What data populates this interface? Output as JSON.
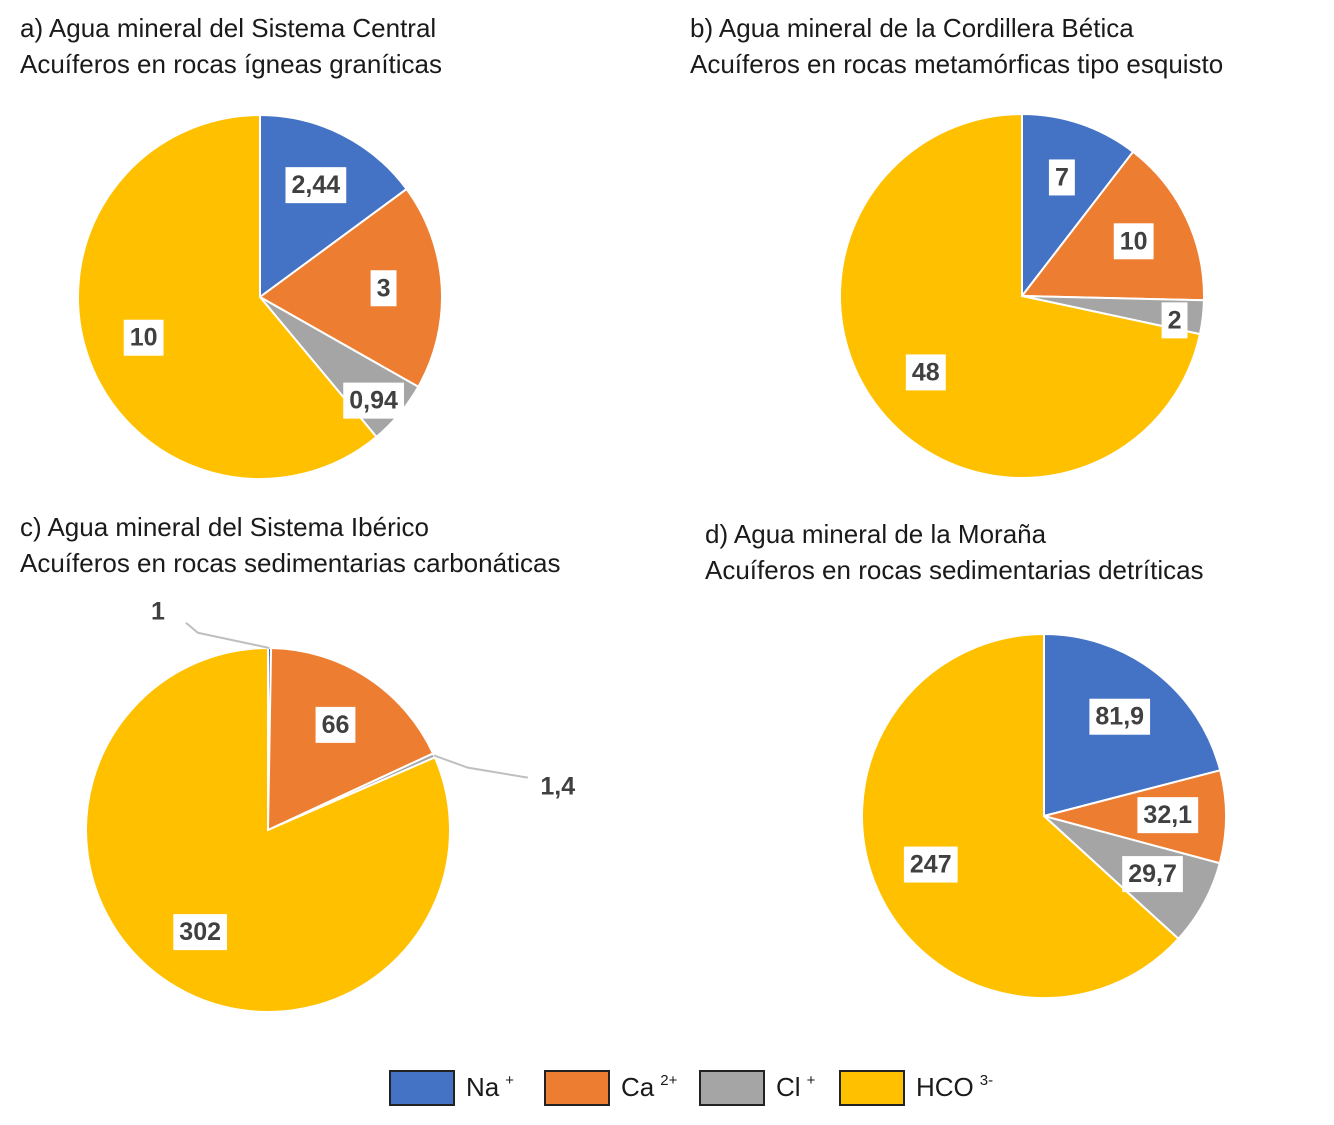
{
  "chart_data": [
    {
      "type": "pie",
      "title": "a)   Agua mineral del Sistema Central",
      "subtitle": "Acuíferos en rocas ígneas graníticas",
      "values": [
        2.44,
        3,
        0.94,
        10
      ],
      "value_labels": [
        "2,44",
        "3",
        "0,94",
        "10"
      ]
    },
    {
      "type": "pie",
      "title": "b)   Agua mineral de la Cordillera Bética",
      "subtitle": "Acuíferos en rocas metamórficas tipo esquisto",
      "values": [
        7,
        10,
        2,
        48
      ]
    },
    {
      "type": "pie",
      "title": "c)   Agua mineral del Sistema Ibérico",
      "subtitle": "Acuíferos en rocas sedimentarias carbonáticas",
      "values": [
        1,
        66,
        1.4,
        302
      ],
      "value_labels": [
        "1",
        "66",
        "1,4",
        "302"
      ]
    },
    {
      "type": "pie",
      "title": "d)   Agua mineral de la Moraña",
      "subtitle": "Acuíferos en rocas sedimentarias detríticas",
      "values": [
        81.9,
        32.1,
        29.7,
        247
      ],
      "value_labels": [
        "81,9",
        "32,1",
        "29,7",
        "247"
      ]
    }
  ],
  "legend": {
    "labels": [
      "Na",
      "Ca",
      "Cl",
      "HCO"
    ],
    "superscripts": [
      "+",
      "2+",
      "+",
      "3-"
    ],
    "colors": [
      "#4472c4",
      "#ed7d31",
      "#a5a5a5",
      "#ffc000"
    ]
  }
}
